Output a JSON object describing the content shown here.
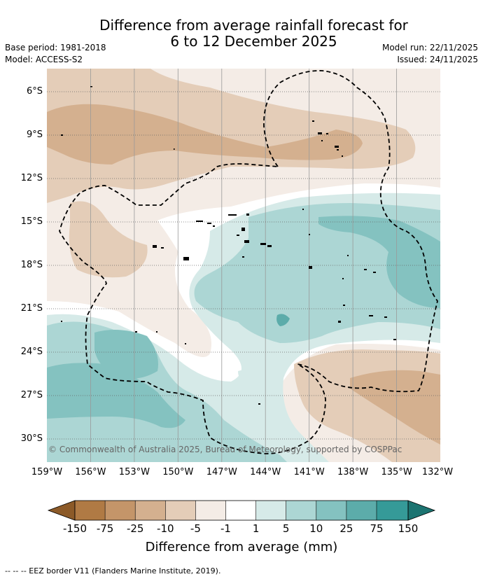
{
  "title_line1": "Difference from average rainfall forecast for",
  "title_line2": "6 to 12 December 2025",
  "base_period": "Base period: 1981-2018",
  "model": "Model: ACCESS-S2",
  "model_run": "Model run: 22/11/2025",
  "issued": "Issued: 24/11/2025",
  "copyright": "© Commonwealth of Australia 2025, Bureau of Meteorology, supported by COSPPac",
  "lat_labels": [
    "6°S",
    "9°S",
    "12°S",
    "15°S",
    "18°S",
    "21°S",
    "24°S",
    "27°S",
    "30°S"
  ],
  "lon_labels": [
    "159°W",
    "156°W",
    "153°W",
    "150°W",
    "147°W",
    "144°W",
    "141°W",
    "138°W",
    "135°W",
    "132°W"
  ],
  "colorbar": {
    "title": "Difference from average (mm)",
    "labels": [
      "-150",
      "-75",
      "-25",
      "-10",
      "-5",
      "-1",
      "1",
      "5",
      "10",
      "25",
      "75",
      "150"
    ],
    "colors": [
      "#8c5a28",
      "#b07a44",
      "#c49569",
      "#d4b08f",
      "#e4cdb8",
      "#f4ece6",
      "#ffffff",
      "#d6eae8",
      "#acd6d4",
      "#84c2c0",
      "#5cacaa",
      "#359a98",
      "#1c7471"
    ]
  },
  "footer": "-- -- -- EEZ border V11 (Flanders Marine Institute, 2019)."
}
